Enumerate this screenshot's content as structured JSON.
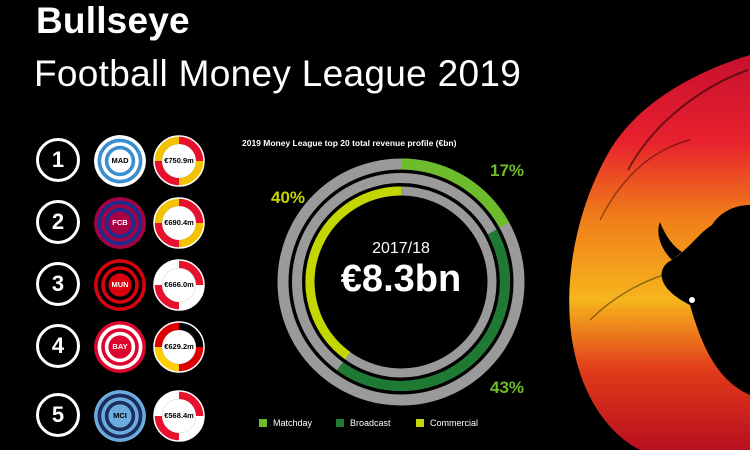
{
  "header": {
    "title": "Bullseye",
    "subtitle": "Football Money League 2019"
  },
  "rankings": [
    {
      "rank": "1",
      "club": "MAD",
      "revenue": "€750.9m",
      "colors": [
        "#ffffff",
        "#3a8fd0"
      ],
      "flag": [
        "#e8112d",
        "#f4c300",
        "#e8112d"
      ]
    },
    {
      "rank": "2",
      "club": "FCB",
      "revenue": "€690.4m",
      "colors": [
        "#a50044",
        "#1b2c8c"
      ],
      "flag": [
        "#e8112d",
        "#f4c300",
        "#e8112d"
      ]
    },
    {
      "rank": "3",
      "club": "MUN",
      "revenue": "€666.0m",
      "colors": [
        "#da020e",
        "#000000"
      ],
      "flag": [
        "#e8112d",
        "#ffffff",
        "#e8112d"
      ]
    },
    {
      "rank": "4",
      "club": "BAY",
      "revenue": "€629.2m",
      "colors": [
        "#dc052d",
        "#ffffff"
      ],
      "flag": [
        "#000000",
        "#dd0000",
        "#ffce00"
      ]
    },
    {
      "rank": "5",
      "club": "MCI",
      "revenue": "€568.4m",
      "colors": [
        "#6cabdd",
        "#1c2c5b"
      ],
      "flag": [
        "#e8112d",
        "#ffffff",
        "#e8112d"
      ]
    }
  ],
  "colors": {
    "matchday": "#6cbc2c",
    "broadcast": "#1e7a32",
    "commercial": "#c4d600",
    "ring": "#9a9a9a"
  },
  "chart_data": {
    "type": "pie",
    "title": "2019 Money League top 20 total revenue profile (€bn)",
    "center_label": "2017/18",
    "center_value": "€8.3bn",
    "slices": [
      {
        "name": "Matchday",
        "value": 17,
        "label": "17%"
      },
      {
        "name": "Broadcast",
        "value": 43,
        "label": "43%"
      },
      {
        "name": "Commercial",
        "value": 40,
        "label": "40%"
      }
    ]
  }
}
